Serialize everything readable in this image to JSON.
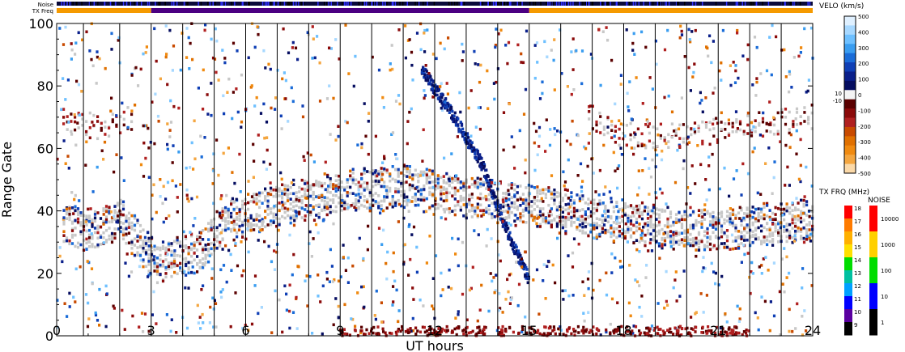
{
  "chart_data": {
    "type": "heatmap",
    "header_labels": {
      "noise": "Noise",
      "tx_freq": "TX Freq"
    },
    "xlabel": "UT hours",
    "ylabel": "Range Gate",
    "xlim": [
      0,
      24
    ],
    "ylim": [
      0,
      100
    ],
    "x_ticks": [
      0,
      3,
      6,
      9,
      12,
      15,
      18,
      21,
      24
    ],
    "y_ticks": [
      0,
      20,
      40,
      60,
      80,
      100
    ],
    "scan_boundaries_ut": [
      0.85,
      2.0,
      3.0,
      4.0,
      5.0,
      6.0,
      7.0,
      8.0,
      9.0,
      10.0,
      11.0,
      12.0,
      13.0,
      14.0,
      15.0,
      16.0,
      17.0,
      18.0,
      19.0,
      20.0,
      21.0,
      22.0,
      23.0
    ],
    "tx_freq_segments": [
      {
        "start": 0,
        "end": 3.0,
        "band": "orange"
      },
      {
        "start": 3.0,
        "end": 15.0,
        "band": "purple"
      },
      {
        "start": 15.0,
        "end": 24,
        "band": "orange"
      }
    ],
    "velocity_scale": {
      "title": "VELO (km/s)",
      "tick_labels": [
        "500",
        "400",
        "300",
        "200",
        "100",
        "0",
        "-100",
        "-200",
        "-300",
        "-400",
        "-500"
      ],
      "side_labels": [
        "10",
        "-10"
      ],
      "colors": [
        "#dff0ff",
        "#a7d8ff",
        "#6ec0ff",
        "#3a9df0",
        "#1a6cd8",
        "#0f3fb5",
        "#0a1f8a",
        "#050d60",
        "#f4f4f4",
        "#5a0000",
        "#8a0a0a",
        "#b02020",
        "#c84a00",
        "#e07000",
        "#f08a10",
        "#f4a640",
        "#fbd9a8"
      ]
    },
    "tx_freq_scale": {
      "title": "TX FRQ (MHz)",
      "tick_labels": [
        "18",
        "17",
        "16",
        "15",
        "14",
        "13",
        "12",
        "11",
        "10",
        "9"
      ],
      "colors": [
        "#ff0000",
        "#ff7b00",
        "#ffb000",
        "#ffe000",
        "#00dd00",
        "#00c0a0",
        "#00a0ff",
        "#0000ff",
        "#5a00a0",
        "#000000"
      ]
    },
    "noise_scale": {
      "title": "NOISE",
      "tick_labels": [
        "10000",
        "1000",
        "100",
        "10",
        "1"
      ],
      "colors": [
        "#ff0000",
        "#ffd000",
        "#00dd00",
        "#0000ff",
        "#000000"
      ]
    },
    "features": [
      {
        "name": "ground scatter band",
        "points": [
          [
            0.2,
            36
          ],
          [
            1.0,
            33
          ],
          [
            2.0,
            38
          ],
          [
            3.2,
            23
          ],
          [
            4.5,
            27
          ],
          [
            5.5,
            37
          ],
          [
            7,
            42
          ],
          [
            9,
            46
          ],
          [
            11,
            48
          ],
          [
            13,
            44
          ],
          [
            15,
            42
          ],
          [
            17,
            38
          ],
          [
            19,
            35
          ],
          [
            21,
            34
          ],
          [
            23,
            36
          ],
          [
            24,
            37
          ]
        ]
      },
      {
        "name": "upper echo band",
        "points": [
          [
            0.2,
            70
          ],
          [
            1.5,
            66
          ],
          [
            2.3,
            70
          ],
          [
            17,
            70
          ],
          [
            18,
            64
          ],
          [
            20,
            64
          ],
          [
            22,
            67
          ],
          [
            24,
            70
          ]
        ]
      },
      {
        "name": "descending ionospheric trace",
        "points": [
          [
            11.6,
            85
          ],
          [
            12.5,
            72
          ],
          [
            13.5,
            55
          ],
          [
            14.2,
            36
          ],
          [
            14.8,
            22
          ],
          [
            15.0,
            18
          ]
        ]
      }
    ]
  }
}
